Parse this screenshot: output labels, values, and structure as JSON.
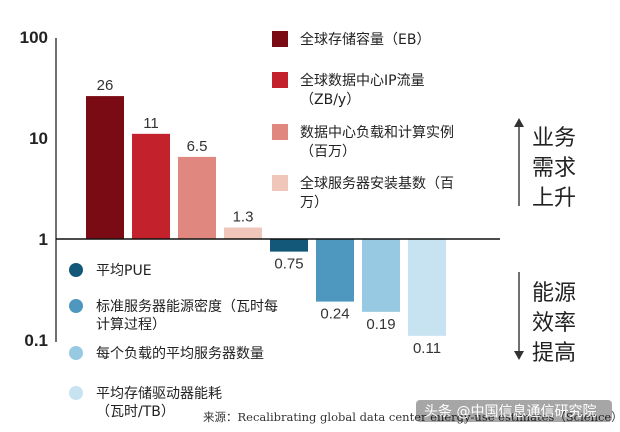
{
  "chart_data": {
    "type": "bar",
    "scale": "log",
    "yticks": [
      "100",
      "10",
      "1",
      "0.1"
    ],
    "ylim": [
      0.1,
      100
    ],
    "series": [
      {
        "name": "全球存储容量（EB）",
        "value": 26,
        "label": "26",
        "color": "#7a0a13"
      },
      {
        "name": "全球数据中心IP流量（ZB/y）",
        "value": 11,
        "label": "11",
        "color": "#c3222c"
      },
      {
        "name": "数据中心负载和计算实例（百万）",
        "value": 6.5,
        "label": "6.5",
        "color": "#e0877f"
      },
      {
        "name": "全球服务器安装基数（百万）",
        "value": 1.3,
        "label": "1.3",
        "color": "#f0c6ba"
      },
      {
        "name": "平均PUE",
        "value": 0.75,
        "label": "0.75",
        "color": "#135878"
      },
      {
        "name": "标准服务器能源密度（瓦时每计算过程）",
        "value": 0.24,
        "label": "0.24",
        "color": "#4e98bf"
      },
      {
        "name": "每个负载的平均服务器数量",
        "value": 0.19,
        "label": "0.19",
        "color": "#98c9e2"
      },
      {
        "name": "平均存储驱动器能耗（瓦时/TB）",
        "value": 0.11,
        "label": "0.11",
        "color": "#c7e3f1"
      }
    ],
    "legend_top": [
      {
        "lines": [
          "全球存储容量（EB）"
        ]
      },
      {
        "lines": [
          "全球数据中心IP流量",
          "（ZB/y）"
        ]
      },
      {
        "lines": [
          "数据中心负载和计算实例",
          "（百万）"
        ]
      },
      {
        "lines": [
          "全球服务器安装基数（百",
          "万）"
        ]
      }
    ],
    "legend_bottom": [
      {
        "lines": [
          "平均PUE"
        ]
      },
      {
        "lines": [
          "标准服务器能源密度（瓦时每",
          "计算过程）"
        ]
      },
      {
        "lines": [
          "每个负载的平均服务器数量"
        ]
      },
      {
        "lines": [
          "平均存储驱动器能耗",
          "（瓦时/TB）"
        ]
      }
    ],
    "annotations": {
      "up": [
        "业务",
        "需求",
        "上升"
      ],
      "down": [
        "能源",
        "效率",
        "提高"
      ]
    },
    "source": "来源：Recalibrating global data center energy-use estimates（Science）",
    "watermark": "头条 @中国信息通信研究院"
  }
}
